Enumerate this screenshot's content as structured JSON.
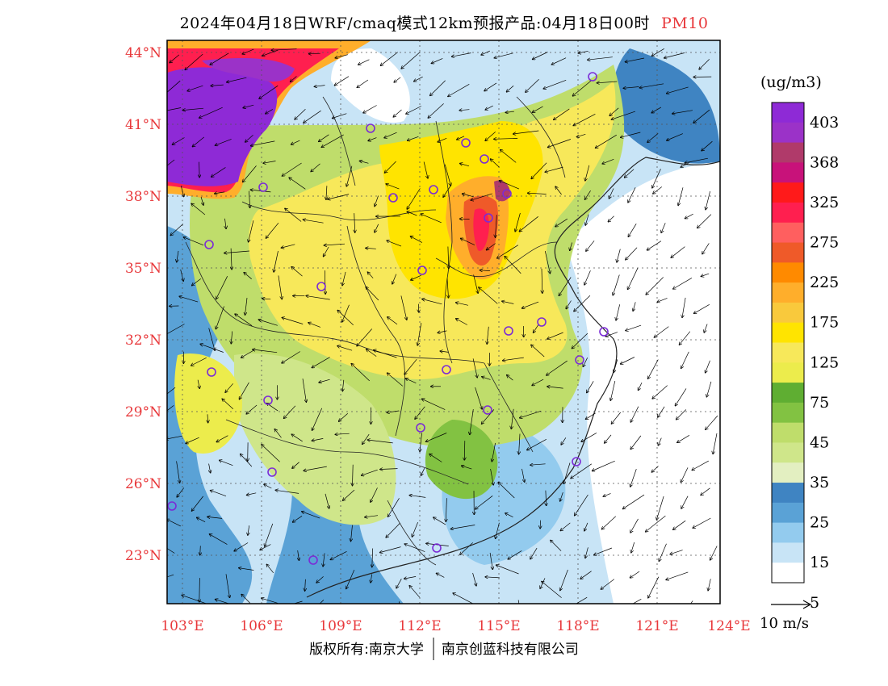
{
  "title": {
    "main": "2024年04月18日WRF/cmaq模式12km预报产品:04月18日00时",
    "variable": "PM10"
  },
  "map": {
    "lat_labels": [
      "44°N",
      "41°N",
      "38°N",
      "35°N",
      "32°N",
      "29°N",
      "26°N",
      "23°N"
    ],
    "lon_labels": [
      "103°E",
      "106°E",
      "109°E",
      "112°E",
      "115°E",
      "118°E",
      "121°E",
      "124°E"
    ],
    "lon_range": [
      103,
      124
    ],
    "lat_range": [
      21,
      44.5
    ],
    "city_marker_color": "#7b2bd6"
  },
  "colorbar": {
    "unit": "(ug/m3)",
    "labels": [
      "403",
      "368",
      "325",
      "275",
      "225",
      "175",
      "125",
      "75",
      "45",
      "35",
      "25",
      "15",
      "5"
    ],
    "colors": [
      "#8e2ad6",
      "#9b32c8",
      "#b03a6a",
      "#c8127a",
      "#ff1a1a",
      "#ff1f4f",
      "#ff5f5f",
      "#ef5a29",
      "#ff8a00",
      "#ffae2b",
      "#f9c93c",
      "#ffe400",
      "#f7e85a",
      "#ecec4c",
      "#5fae32",
      "#82c242",
      "#bfdd6b",
      "#cfe68a",
      "#e3efc1",
      "#3f84c2",
      "#5aa2d6",
      "#93cbee",
      "#c8e4f6",
      "#ffffff"
    ]
  },
  "wind_reference": {
    "label": "10 m/s"
  },
  "copyright": {
    "text_left": "版权所有:南京大学",
    "text_right": "南京创蓝科技有限公司"
  }
}
